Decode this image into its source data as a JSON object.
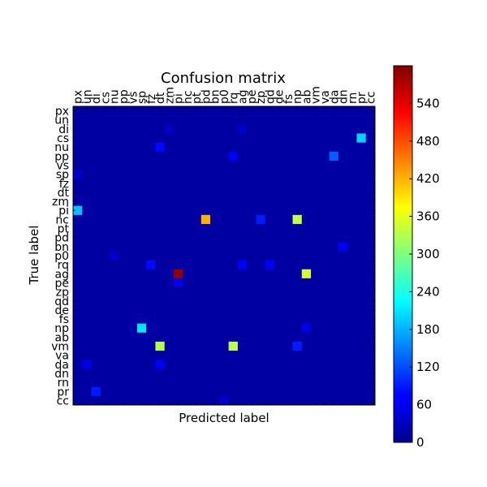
{
  "chart_data": {
    "type": "heatmap",
    "title": "Confusion matrix",
    "xlabel": "Predicted label",
    "ylabel": "True label",
    "labels": [
      "px",
      "un",
      "di",
      "cs",
      "nu",
      "pp",
      "vs",
      "sp",
      "fz",
      "dt",
      "zm",
      "pi",
      "nc",
      "pt",
      "pd",
      "bn",
      "p0",
      "rq",
      "ag",
      "pe",
      "zp",
      "qd",
      "de",
      "fs",
      "np",
      "ab",
      "vm",
      "va",
      "da",
      "dn",
      "rn",
      "pr",
      "cc"
    ],
    "colorbar": {
      "min": 0,
      "max": 600,
      "ticks": [
        0,
        60,
        120,
        180,
        240,
        300,
        360,
        420,
        480,
        540
      ]
    },
    "colormap": "jet",
    "background_value": 20,
    "cells": [
      {
        "row": "cs",
        "col": "pr",
        "value": 200
      },
      {
        "row": "nu",
        "col": "dt",
        "value": 80
      },
      {
        "row": "pp",
        "col": "rq",
        "value": 70
      },
      {
        "row": "pp",
        "col": "da",
        "value": 130
      },
      {
        "row": "pi",
        "col": "px",
        "value": 190
      },
      {
        "row": "nc",
        "col": "pd",
        "value": 420
      },
      {
        "row": "nc",
        "col": "zp",
        "value": 90
      },
      {
        "row": "nc",
        "col": "np",
        "value": 340
      },
      {
        "row": "bn",
        "col": "dn",
        "value": 70
      },
      {
        "row": "rq",
        "col": "fz",
        "value": 80
      },
      {
        "row": "rq",
        "col": "ag",
        "value": 70
      },
      {
        "row": "rq",
        "col": "qd",
        "value": 70
      },
      {
        "row": "ag",
        "col": "pi",
        "value": 590
      },
      {
        "row": "ag",
        "col": "ab",
        "value": 350
      },
      {
        "row": "pe",
        "col": "pi",
        "value": 60
      },
      {
        "row": "np",
        "col": "sp",
        "value": 210
      },
      {
        "row": "np",
        "col": "ab",
        "value": 60
      },
      {
        "row": "vm",
        "col": "dt",
        "value": 330
      },
      {
        "row": "vm",
        "col": "rq",
        "value": 330
      },
      {
        "row": "vm",
        "col": "np",
        "value": 90
      },
      {
        "row": "da",
        "col": "un",
        "value": 60
      },
      {
        "row": "da",
        "col": "dt",
        "value": 70
      },
      {
        "row": "pr",
        "col": "di",
        "value": 90
      },
      {
        "row": "sp",
        "col": "px",
        "value": 45
      },
      {
        "row": "di",
        "col": "zm",
        "value": 40
      },
      {
        "row": "di",
        "col": "ag",
        "value": 45
      },
      {
        "row": "cc",
        "col": "p0",
        "value": 45
      },
      {
        "row": "p0",
        "col": "nu",
        "value": 45
      }
    ]
  }
}
